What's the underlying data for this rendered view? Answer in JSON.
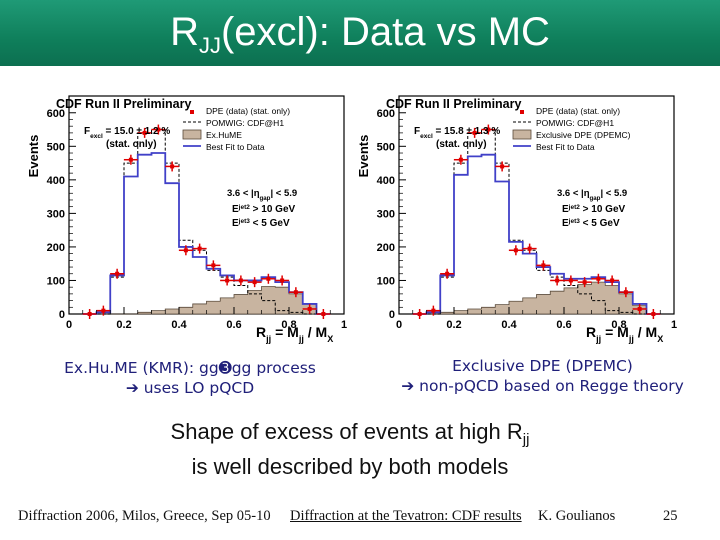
{
  "title": {
    "main": "R",
    "sub": "JJ",
    "rest": "(excl): Data vs MC"
  },
  "colors": {
    "header": "#0f7f5b",
    "data": "#e00000",
    "fit": "#4040c8",
    "mc": "#c8b4a0",
    "caption": "#20207a"
  },
  "chart_data": [
    {
      "type": "bar",
      "title": "CDF Run II Preliminary",
      "ylabel": "Events",
      "xlabel_main": "R",
      "xlabel_sub": "jj",
      "xlabel_eq": " = M",
      "xlabel_sub2": "jj",
      "xlabel_tail": " / M",
      "xlabel_sub3": "X",
      "xlim": [
        0,
        1
      ],
      "ylim": [
        0,
        650
      ],
      "xticks": [
        "0",
        "0.2",
        "0.4",
        "0.6",
        "0.8",
        "1"
      ],
      "xtick_values": [
        0,
        0.2,
        0.4,
        0.6,
        0.8,
        1.0
      ],
      "yticks": [
        "0",
        "100",
        "200",
        "300",
        "400",
        "500",
        "600"
      ],
      "ytick_values": [
        0,
        100,
        200,
        300,
        400,
        500,
        600
      ],
      "fraction_label": "F",
      "fraction_sub": "excl",
      "fraction_value": " = 15.0 ± 1.2 %",
      "fraction_note": "(stat. only)",
      "legend": [
        "DPE (data) (stat. only)",
        "POMWIG: CDF@H1",
        "Ex.HuME",
        "Best Fit to Data"
      ],
      "cut1": "3.6 < |η",
      "cut1_sub": "gap",
      "cut1_tail": "| < 5.9",
      "cut2": "E",
      "cut2_sup": "jet2",
      "cut2_tail": " > 10 GeV",
      "cut3": "E",
      "cut3_sup": "jet3",
      "cut3_tail": " < 5 GeV",
      "bin_edges": [
        0.05,
        0.1,
        0.15,
        0.2,
        0.25,
        0.3,
        0.35,
        0.4,
        0.45,
        0.5,
        0.55,
        0.6,
        0.65,
        0.7,
        0.75,
        0.8,
        0.85,
        0.9,
        0.95
      ],
      "data_points": {
        "x": [
          0.075,
          0.125,
          0.175,
          0.225,
          0.275,
          0.325,
          0.375,
          0.425,
          0.475,
          0.525,
          0.575,
          0.625,
          0.675,
          0.725,
          0.775,
          0.825,
          0.875,
          0.925
        ],
        "y": [
          0,
          10,
          120,
          460,
          540,
          550,
          440,
          190,
          195,
          145,
          100,
          100,
          95,
          105,
          100,
          65,
          15,
          0
        ]
      },
      "series": [
        {
          "name": "POMWIG: CDF@H1",
          "style": "dashed",
          "values": [
            0,
            0,
            110,
            450,
            540,
            550,
            450,
            220,
            190,
            130,
            110,
            85,
            60,
            40,
            10,
            5,
            0,
            0
          ]
        },
        {
          "name": "Ex.HuME",
          "style": "filled",
          "values": [
            0,
            0,
            0,
            0,
            5,
            10,
            15,
            20,
            30,
            38,
            48,
            58,
            70,
            82,
            80,
            60,
            30,
            0
          ]
        },
        {
          "name": "Best Fit to Data",
          "style": "solid",
          "values": [
            0,
            5,
            115,
            410,
            475,
            480,
            390,
            200,
            170,
            135,
            115,
            100,
            100,
            110,
            95,
            65,
            30,
            0
          ]
        }
      ]
    },
    {
      "type": "bar",
      "title": "CDF Run II Preliminary",
      "ylabel": "Events",
      "xlabel_main": "R",
      "xlabel_sub": "jj",
      "xlabel_eq": " = M",
      "xlabel_sub2": "jj",
      "xlabel_tail": " / M",
      "xlabel_sub3": "X",
      "xlim": [
        0,
        1
      ],
      "ylim": [
        0,
        650
      ],
      "xticks": [
        "0",
        "0.2",
        "0.4",
        "0.6",
        "0.8",
        "1"
      ],
      "xtick_values": [
        0,
        0.2,
        0.4,
        0.6,
        0.8,
        1.0
      ],
      "yticks": [
        "0",
        "100",
        "200",
        "300",
        "400",
        "500",
        "600"
      ],
      "ytick_values": [
        0,
        100,
        200,
        300,
        400,
        500,
        600
      ],
      "fraction_label": "F",
      "fraction_sub": "excl",
      "fraction_value": " = 15.8 ± 1.3 %",
      "fraction_note": "(stat. only)",
      "legend": [
        "DPE (data) (stat. only)",
        "POMWIG: CDF@H1",
        "Exclusive DPE (DPEMC)",
        "Best Fit to Data"
      ],
      "cut1": "3.6 < |η",
      "cut1_sub": "gap",
      "cut1_tail": "| < 5.9",
      "cut2": "E",
      "cut2_sup": "jet2",
      "cut2_tail": " > 10 GeV",
      "cut3": "E",
      "cut3_sup": "jet3",
      "cut3_tail": " < 5 GeV",
      "bin_edges": [
        0.05,
        0.1,
        0.15,
        0.2,
        0.25,
        0.3,
        0.35,
        0.4,
        0.45,
        0.5,
        0.55,
        0.6,
        0.65,
        0.7,
        0.75,
        0.8,
        0.85,
        0.9,
        0.95
      ],
      "data_points": {
        "x": [
          0.075,
          0.125,
          0.175,
          0.225,
          0.275,
          0.325,
          0.375,
          0.425,
          0.475,
          0.525,
          0.575,
          0.625,
          0.675,
          0.725,
          0.775,
          0.825,
          0.875,
          0.925
        ],
        "y": [
          0,
          10,
          120,
          460,
          540,
          550,
          440,
          190,
          195,
          145,
          100,
          100,
          95,
          105,
          100,
          65,
          15,
          0
        ]
      },
      "series": [
        {
          "name": "POMWIG: CDF@H1",
          "style": "dashed",
          "values": [
            0,
            0,
            110,
            450,
            540,
            550,
            450,
            220,
            190,
            130,
            110,
            85,
            60,
            40,
            10,
            5,
            0,
            0
          ]
        },
        {
          "name": "Exclusive DPE (DPEMC)",
          "style": "filled",
          "values": [
            0,
            0,
            5,
            10,
            15,
            20,
            28,
            38,
            48,
            58,
            68,
            78,
            88,
            95,
            85,
            60,
            25,
            0
          ]
        },
        {
          "name": "Best Fit to Data",
          "style": "solid",
          "values": [
            0,
            5,
            115,
            415,
            470,
            475,
            395,
            215,
            180,
            140,
            120,
            105,
            105,
            110,
            95,
            65,
            30,
            0
          ]
        }
      ]
    }
  ],
  "captions": {
    "left_line1": "Ex.Hu.ME (KMR): gg➌gg process",
    "left_line2": "➔ uses LO pQCD",
    "right_line1": "Exclusive DPE (DPEMC)",
    "right_line2": "➔ non-pQCD based on Regge theory"
  },
  "summary": {
    "line1": "Shape of excess of events at high R",
    "line1_sub": "jj",
    "line2": "is well described by both models"
  },
  "footer": {
    "left": "Diffraction 2006, Milos, Greece, Sep 05-10",
    "middle": "Diffraction at the Tevatron: CDF results",
    "author": "K. Goulianos",
    "page": "25"
  }
}
